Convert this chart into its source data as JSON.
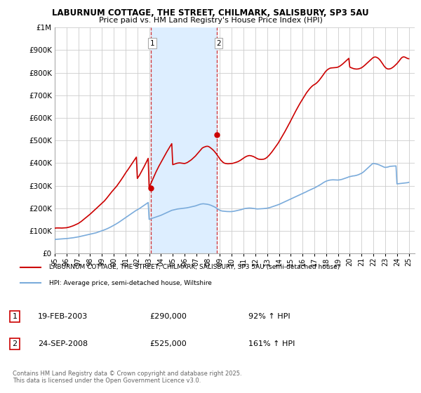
{
  "title": "LABURNUM COTTAGE, THE STREET, CHILMARK, SALISBURY, SP3 5AU",
  "subtitle": "Price paid vs. HM Land Registry's House Price Index (HPI)",
  "legend_line1": "LABURNUM COTTAGE, THE STREET, CHILMARK, SALISBURY, SP3 5AU (semi-detached house)",
  "legend_line2": "HPI: Average price, semi-detached house, Wiltshire",
  "footer": "Contains HM Land Registry data © Crown copyright and database right 2025.\nThis data is licensed under the Open Government Licence v3.0.",
  "sale1_label": "1",
  "sale1_date": "19-FEB-2003",
  "sale1_price": 290000,
  "sale1_pct": "92% ↑ HPI",
  "sale2_label": "2",
  "sale2_date": "24-SEP-2008",
  "sale2_price": 525000,
  "sale2_pct": "161% ↑ HPI",
  "sale1_x": 2003.12,
  "sale2_x": 2008.73,
  "property_color": "#cc0000",
  "hpi_color": "#7aabdb",
  "shade_color": "#ddeeff",
  "ylim": [
    0,
    1000000
  ],
  "xlim": [
    1995.0,
    2025.5
  ],
  "background_color": "#ffffff",
  "grid_color": "#cccccc",
  "hpi_years": [
    1995.0,
    1995.083,
    1995.167,
    1995.25,
    1995.333,
    1995.417,
    1995.5,
    1995.583,
    1995.667,
    1995.75,
    1995.833,
    1995.917,
    1996.0,
    1996.083,
    1996.167,
    1996.25,
    1996.333,
    1996.417,
    1996.5,
    1996.583,
    1996.667,
    1996.75,
    1996.833,
    1996.917,
    1997.0,
    1997.083,
    1997.167,
    1997.25,
    1997.333,
    1997.417,
    1997.5,
    1997.583,
    1997.667,
    1997.75,
    1997.833,
    1997.917,
    1998.0,
    1998.083,
    1998.167,
    1998.25,
    1998.333,
    1998.417,
    1998.5,
    1998.583,
    1998.667,
    1998.75,
    1998.833,
    1998.917,
    1999.0,
    1999.083,
    1999.167,
    1999.25,
    1999.333,
    1999.417,
    1999.5,
    1999.583,
    1999.667,
    1999.75,
    1999.833,
    1999.917,
    2000.0,
    2000.083,
    2000.167,
    2000.25,
    2000.333,
    2000.417,
    2000.5,
    2000.583,
    2000.667,
    2000.75,
    2000.833,
    2000.917,
    2001.0,
    2001.083,
    2001.167,
    2001.25,
    2001.333,
    2001.417,
    2001.5,
    2001.583,
    2001.667,
    2001.75,
    2001.833,
    2001.917,
    2002.0,
    2002.083,
    2002.167,
    2002.25,
    2002.333,
    2002.417,
    2002.5,
    2002.583,
    2002.667,
    2002.75,
    2002.833,
    2002.917,
    2003.0,
    2003.083,
    2003.167,
    2003.25,
    2003.333,
    2003.417,
    2003.5,
    2003.583,
    2003.667,
    2003.75,
    2003.833,
    2003.917,
    2004.0,
    2004.083,
    2004.167,
    2004.25,
    2004.333,
    2004.417,
    2004.5,
    2004.583,
    2004.667,
    2004.75,
    2004.833,
    2004.917,
    2005.0,
    2005.083,
    2005.167,
    2005.25,
    2005.333,
    2005.417,
    2005.5,
    2005.583,
    2005.667,
    2005.75,
    2005.833,
    2005.917,
    2006.0,
    2006.083,
    2006.167,
    2006.25,
    2006.333,
    2006.417,
    2006.5,
    2006.583,
    2006.667,
    2006.75,
    2006.833,
    2006.917,
    2007.0,
    2007.083,
    2007.167,
    2007.25,
    2007.333,
    2007.417,
    2007.5,
    2007.583,
    2007.667,
    2007.75,
    2007.833,
    2007.917,
    2008.0,
    2008.083,
    2008.167,
    2008.25,
    2008.333,
    2008.417,
    2008.5,
    2008.583,
    2008.667,
    2008.75,
    2008.833,
    2008.917,
    2009.0,
    2009.083,
    2009.167,
    2009.25,
    2009.333,
    2009.417,
    2009.5,
    2009.583,
    2009.667,
    2009.75,
    2009.833,
    2009.917,
    2010.0,
    2010.083,
    2010.167,
    2010.25,
    2010.333,
    2010.417,
    2010.5,
    2010.583,
    2010.667,
    2010.75,
    2010.833,
    2010.917,
    2011.0,
    2011.083,
    2011.167,
    2011.25,
    2011.333,
    2011.417,
    2011.5,
    2011.583,
    2011.667,
    2011.75,
    2011.833,
    2011.917,
    2012.0,
    2012.083,
    2012.167,
    2012.25,
    2012.333,
    2012.417,
    2012.5,
    2012.583,
    2012.667,
    2012.75,
    2012.833,
    2012.917,
    2013.0,
    2013.083,
    2013.167,
    2013.25,
    2013.333,
    2013.417,
    2013.5,
    2013.583,
    2013.667,
    2013.75,
    2013.833,
    2013.917,
    2014.0,
    2014.083,
    2014.167,
    2014.25,
    2014.333,
    2014.417,
    2014.5,
    2014.583,
    2014.667,
    2014.75,
    2014.833,
    2014.917,
    2015.0,
    2015.083,
    2015.167,
    2015.25,
    2015.333,
    2015.417,
    2015.5,
    2015.583,
    2015.667,
    2015.75,
    2015.833,
    2015.917,
    2016.0,
    2016.083,
    2016.167,
    2016.25,
    2016.333,
    2016.417,
    2016.5,
    2016.583,
    2016.667,
    2016.75,
    2016.833,
    2016.917,
    2017.0,
    2017.083,
    2017.167,
    2017.25,
    2017.333,
    2017.417,
    2017.5,
    2017.583,
    2017.667,
    2017.75,
    2017.833,
    2017.917,
    2018.0,
    2018.083,
    2018.167,
    2018.25,
    2018.333,
    2018.417,
    2018.5,
    2018.583,
    2018.667,
    2018.75,
    2018.833,
    2018.917,
    2019.0,
    2019.083,
    2019.167,
    2019.25,
    2019.333,
    2019.417,
    2019.5,
    2019.583,
    2019.667,
    2019.75,
    2019.833,
    2019.917,
    2020.0,
    2020.083,
    2020.167,
    2020.25,
    2020.333,
    2020.417,
    2020.5,
    2020.583,
    2020.667,
    2020.75,
    2020.833,
    2020.917,
    2021.0,
    2021.083,
    2021.167,
    2021.25,
    2021.333,
    2021.417,
    2021.5,
    2021.583,
    2021.667,
    2021.75,
    2021.833,
    2021.917,
    2022.0,
    2022.083,
    2022.167,
    2022.25,
    2022.333,
    2022.417,
    2022.5,
    2022.583,
    2022.667,
    2022.75,
    2022.833,
    2022.917,
    2023.0,
    2023.083,
    2023.167,
    2023.25,
    2023.333,
    2023.417,
    2023.5,
    2023.583,
    2023.667,
    2023.75,
    2023.833,
    2023.917,
    2024.0,
    2024.083,
    2024.167,
    2024.25,
    2024.333,
    2024.417,
    2024.5,
    2024.583,
    2024.667,
    2024.75,
    2024.833,
    2024.917,
    2025.0
  ],
  "hpi_values": [
    62000,
    62500,
    63000,
    63200,
    63500,
    63800,
    64000,
    64300,
    64700,
    65000,
    65300,
    65600,
    66000,
    66500,
    67000,
    67500,
    68000,
    68500,
    69000,
    69800,
    70500,
    71200,
    72000,
    72800,
    73500,
    74500,
    75500,
    76500,
    77500,
    78500,
    79500,
    80500,
    81500,
    82500,
    83500,
    84500,
    85500,
    86500,
    87500,
    88500,
    89500,
    90500,
    91500,
    93000,
    94500,
    96000,
    97500,
    99000,
    100500,
    102000,
    103800,
    105500,
    107200,
    109000,
    111000,
    113000,
    115200,
    117500,
    119800,
    122000,
    124500,
    127000,
    129500,
    132000,
    134800,
    137500,
    140500,
    143500,
    146500,
    149500,
    152500,
    155500,
    158500,
    161500,
    164500,
    167500,
    170500,
    173500,
    176500,
    179500,
    182500,
    185500,
    188500,
    191000,
    193500,
    196000,
    198500,
    201500,
    204500,
    207500,
    210500,
    213500,
    216500,
    219500,
    222500,
    225500,
    151000,
    152500,
    154000,
    155500,
    157000,
    158500,
    160000,
    161500,
    163000,
    164500,
    166000,
    167500,
    169000,
    171000,
    173000,
    175000,
    177000,
    179000,
    181000,
    183000,
    185000,
    187000,
    189000,
    191000,
    192000,
    193000,
    194000,
    195000,
    196000,
    197000,
    197500,
    198000,
    198500,
    199000,
    199500,
    200000,
    200500,
    201000,
    201800,
    202500,
    203500,
    204500,
    205500,
    206500,
    207500,
    208500,
    209500,
    210500,
    212000,
    213500,
    215000,
    216500,
    218000,
    219000,
    219500,
    220000,
    219500,
    219000,
    218500,
    218000,
    217000,
    216000,
    214500,
    213000,
    211000,
    209000,
    207000,
    205000,
    202000,
    199000,
    196000,
    193000,
    191000,
    189500,
    188000,
    187500,
    187000,
    186500,
    186000,
    185800,
    185600,
    185500,
    185400,
    185400,
    185500,
    186000,
    186800,
    187500,
    188500,
    189500,
    190500,
    191500,
    192500,
    193500,
    194500,
    196000,
    197500,
    198500,
    199500,
    200000,
    200500,
    200800,
    201000,
    200800,
    200500,
    200000,
    199500,
    198800,
    198000,
    197500,
    197000,
    197200,
    197400,
    197600,
    197800,
    198000,
    198500,
    199000,
    199500,
    200000,
    200500,
    201500,
    202500,
    203500,
    205000,
    206500,
    208000,
    209500,
    211000,
    212500,
    214000,
    215500,
    217000,
    219000,
    221000,
    223000,
    225000,
    227000,
    229000,
    231000,
    233000,
    235000,
    237000,
    239000,
    241000,
    243000,
    245000,
    247000,
    249000,
    251000,
    253000,
    255000,
    257000,
    259000,
    261000,
    263000,
    265000,
    267000,
    269000,
    271000,
    273500,
    276000,
    278000,
    280000,
    282000,
    284000,
    286000,
    288000,
    290000,
    292000,
    294500,
    297000,
    299500,
    302000,
    304500,
    307000,
    310000,
    313000,
    315500,
    318000,
    320000,
    321500,
    323000,
    324000,
    325000,
    325500,
    325800,
    326000,
    325800,
    325500,
    325200,
    325000,
    325000,
    325500,
    326000,
    327000,
    328000,
    329500,
    331000,
    332500,
    334000,
    335500,
    337000,
    339000,
    340000,
    341000,
    342000,
    343000,
    343500,
    344000,
    345000,
    346000,
    347500,
    349000,
    351000,
    353000,
    355000,
    358000,
    361000,
    365000,
    369000,
    373000,
    377000,
    381000,
    385000,
    389000,
    393000,
    397000,
    398000,
    397500,
    397000,
    396000,
    395000,
    393500,
    392000,
    390000,
    388000,
    386000,
    384000,
    382000,
    381000,
    381500,
    382000,
    383000,
    384500,
    385500,
    386000,
    386500,
    386800,
    387000,
    387200,
    387400,
    308000,
    308500,
    309000,
    309500,
    310000,
    310500,
    311000,
    311500,
    312000,
    312500,
    313000,
    313500,
    315000
  ],
  "prop_years": [
    1995.0,
    1995.083,
    1995.167,
    1995.25,
    1995.333,
    1995.417,
    1995.5,
    1995.583,
    1995.667,
    1995.75,
    1995.833,
    1995.917,
    1996.0,
    1996.083,
    1996.167,
    1996.25,
    1996.333,
    1996.417,
    1996.5,
    1996.583,
    1996.667,
    1996.75,
    1996.833,
    1996.917,
    1997.0,
    1997.083,
    1997.167,
    1997.25,
    1997.333,
    1997.417,
    1997.5,
    1997.583,
    1997.667,
    1997.75,
    1997.833,
    1997.917,
    1998.0,
    1998.083,
    1998.167,
    1998.25,
    1998.333,
    1998.417,
    1998.5,
    1998.583,
    1998.667,
    1998.75,
    1998.833,
    1998.917,
    1999.0,
    1999.083,
    1999.167,
    1999.25,
    1999.333,
    1999.417,
    1999.5,
    1999.583,
    1999.667,
    1999.75,
    1999.833,
    1999.917,
    2000.0,
    2000.083,
    2000.167,
    2000.25,
    2000.333,
    2000.417,
    2000.5,
    2000.583,
    2000.667,
    2000.75,
    2000.833,
    2000.917,
    2001.0,
    2001.083,
    2001.167,
    2001.25,
    2001.333,
    2001.417,
    2001.5,
    2001.583,
    2001.667,
    2001.75,
    2001.833,
    2001.917,
    2002.0,
    2002.083,
    2002.167,
    2002.25,
    2002.333,
    2002.417,
    2002.5,
    2002.583,
    2002.667,
    2002.75,
    2002.833,
    2002.917,
    2003.0,
    2003.083,
    2003.167,
    2003.25,
    2003.333,
    2003.417,
    2003.5,
    2003.583,
    2003.667,
    2003.75,
    2003.833,
    2003.917,
    2004.0,
    2004.083,
    2004.167,
    2004.25,
    2004.333,
    2004.417,
    2004.5,
    2004.583,
    2004.667,
    2004.75,
    2004.833,
    2004.917,
    2005.0,
    2005.083,
    2005.167,
    2005.25,
    2005.333,
    2005.417,
    2005.5,
    2005.583,
    2005.667,
    2005.75,
    2005.833,
    2005.917,
    2006.0,
    2006.083,
    2006.167,
    2006.25,
    2006.333,
    2006.417,
    2006.5,
    2006.583,
    2006.667,
    2006.75,
    2006.833,
    2006.917,
    2007.0,
    2007.083,
    2007.167,
    2007.25,
    2007.333,
    2007.417,
    2007.5,
    2007.583,
    2007.667,
    2007.75,
    2007.833,
    2007.917,
    2008.0,
    2008.083,
    2008.167,
    2008.25,
    2008.333,
    2008.417,
    2008.5,
    2008.583,
    2008.667,
    2008.75,
    2008.833,
    2008.917,
    2009.0,
    2009.083,
    2009.167,
    2009.25,
    2009.333,
    2009.417,
    2009.5,
    2009.583,
    2009.667,
    2009.75,
    2009.833,
    2009.917,
    2010.0,
    2010.083,
    2010.167,
    2010.25,
    2010.333,
    2010.417,
    2010.5,
    2010.583,
    2010.667,
    2010.75,
    2010.833,
    2010.917,
    2011.0,
    2011.083,
    2011.167,
    2011.25,
    2011.333,
    2011.417,
    2011.5,
    2011.583,
    2011.667,
    2011.75,
    2011.833,
    2011.917,
    2012.0,
    2012.083,
    2012.167,
    2012.25,
    2012.333,
    2012.417,
    2012.5,
    2012.583,
    2012.667,
    2012.75,
    2012.833,
    2012.917,
    2013.0,
    2013.083,
    2013.167,
    2013.25,
    2013.333,
    2013.417,
    2013.5,
    2013.583,
    2013.667,
    2013.75,
    2013.833,
    2013.917,
    2014.0,
    2014.083,
    2014.167,
    2014.25,
    2014.333,
    2014.417,
    2014.5,
    2014.583,
    2014.667,
    2014.75,
    2014.833,
    2014.917,
    2015.0,
    2015.083,
    2015.167,
    2015.25,
    2015.333,
    2015.417,
    2015.5,
    2015.583,
    2015.667,
    2015.75,
    2015.833,
    2015.917,
    2016.0,
    2016.083,
    2016.167,
    2016.25,
    2016.333,
    2016.417,
    2016.5,
    2016.583,
    2016.667,
    2016.75,
    2016.833,
    2016.917,
    2017.0,
    2017.083,
    2017.167,
    2017.25,
    2017.333,
    2017.417,
    2017.5,
    2017.583,
    2017.667,
    2017.75,
    2017.833,
    2017.917,
    2018.0,
    2018.083,
    2018.167,
    2018.25,
    2018.333,
    2018.417,
    2018.5,
    2018.583,
    2018.667,
    2018.75,
    2018.833,
    2018.917,
    2019.0,
    2019.083,
    2019.167,
    2019.25,
    2019.333,
    2019.417,
    2019.5,
    2019.583,
    2019.667,
    2019.75,
    2019.833,
    2019.917,
    2020.0,
    2020.083,
    2020.167,
    2020.25,
    2020.333,
    2020.417,
    2020.5,
    2020.583,
    2020.667,
    2020.75,
    2020.833,
    2020.917,
    2021.0,
    2021.083,
    2021.167,
    2021.25,
    2021.333,
    2021.417,
    2021.5,
    2021.583,
    2021.667,
    2021.75,
    2021.833,
    2021.917,
    2022.0,
    2022.083,
    2022.167,
    2022.25,
    2022.333,
    2022.417,
    2022.5,
    2022.583,
    2022.667,
    2022.75,
    2022.833,
    2022.917,
    2023.0,
    2023.083,
    2023.167,
    2023.25,
    2023.333,
    2023.417,
    2023.5,
    2023.583,
    2023.667,
    2023.75,
    2023.833,
    2023.917,
    2024.0,
    2024.083,
    2024.167,
    2024.25,
    2024.333,
    2024.417,
    2024.5,
    2024.583,
    2024.667,
    2024.75,
    2024.833,
    2024.917,
    2025.0
  ],
  "prop_values": [
    112000,
    112500,
    113000,
    113000,
    113200,
    113000,
    112800,
    112500,
    112800,
    113000,
    113200,
    113500,
    114000,
    115000,
    116000,
    117000,
    118500,
    120000,
    121500,
    123000,
    125000,
    127000,
    129000,
    131000,
    133000,
    136000,
    139000,
    142000,
    145500,
    149000,
    152500,
    156000,
    159500,
    163000,
    166500,
    170000,
    174000,
    178000,
    182000,
    186000,
    190000,
    194000,
    198000,
    202000,
    206000,
    210000,
    214000,
    218000,
    222000,
    226000,
    230500,
    235000,
    240000,
    245500,
    251000,
    256500,
    262000,
    267500,
    273000,
    278000,
    283000,
    288000,
    293000,
    298000,
    304000,
    310000,
    316000,
    322500,
    329000,
    335500,
    342000,
    349000,
    356000,
    362000,
    368000,
    374500,
    381000,
    388000,
    394500,
    401000,
    407500,
    414000,
    420000,
    426500,
    332000,
    338500,
    345000,
    353000,
    361000,
    369000,
    377000,
    385500,
    394000,
    403000,
    412000,
    421000,
    290000,
    302000,
    312000,
    322000,
    332000,
    342000,
    352000,
    361000,
    370000,
    379000,
    387000,
    395000,
    403000,
    411000,
    418500,
    426000,
    434000,
    442000,
    450000,
    457500,
    465000,
    472000,
    479000,
    486000,
    393000,
    394500,
    396000,
    397500,
    399000,
    400000,
    400500,
    401000,
    400500,
    400000,
    399200,
    398500,
    398000,
    399500,
    401000,
    403000,
    406000,
    409000,
    412000,
    415000,
    419000,
    423000,
    427000,
    431000,
    436000,
    441000,
    446000,
    451000,
    456500,
    461500,
    466500,
    469000,
    471000,
    472500,
    474000,
    474500,
    474000,
    472000,
    469000,
    465500,
    462000,
    458000,
    453500,
    448500,
    443000,
    437000,
    430500,
    424000,
    418000,
    412500,
    408000,
    404000,
    401000,
    399000,
    398000,
    397500,
    397000,
    397200,
    397500,
    397800,
    398200,
    399000,
    400200,
    401500,
    403000,
    404500,
    406000,
    408000,
    410500,
    413000,
    416000,
    419000,
    422000,
    425000,
    427500,
    430000,
    431500,
    432800,
    433500,
    432800,
    432000,
    430500,
    429000,
    427000,
    424500,
    422000,
    419500,
    418000,
    417000,
    416500,
    416200,
    416500,
    417000,
    418000,
    420000,
    422500,
    426000,
    430000,
    434500,
    439500,
    445000,
    450500,
    456500,
    462500,
    468500,
    474500,
    480500,
    487000,
    494000,
    501500,
    509000,
    516500,
    524000,
    531500,
    539000,
    547000,
    555000,
    563000,
    571000,
    579500,
    588000,
    596500,
    605000,
    613500,
    622000,
    630000,
    638000,
    646000,
    654000,
    661500,
    669000,
    676000,
    683000,
    690000,
    697000,
    704000,
    711000,
    717000,
    722500,
    728000,
    733000,
    737500,
    741500,
    745000,
    747500,
    750000,
    753500,
    757500,
    762000,
    767000,
    772500,
    778500,
    784500,
    790500,
    797000,
    803000,
    808000,
    812000,
    815500,
    818000,
    820000,
    821000,
    821500,
    821800,
    822000,
    822500,
    823000,
    823500,
    825000,
    827000,
    829500,
    832500,
    836000,
    839500,
    843500,
    847500,
    851500,
    855500,
    859500,
    863500,
    825000,
    823000,
    821000,
    819500,
    818000,
    817000,
    816500,
    816000,
    816500,
    817000,
    818500,
    820000,
    822000,
    825000,
    828500,
    832000,
    836000,
    840000,
    844000,
    848000,
    852000,
    856000,
    860000,
    864000,
    867500,
    869000,
    869500,
    868500,
    866500,
    863500,
    859500,
    854500,
    848500,
    842000,
    835500,
    829000,
    824000,
    820000,
    817500,
    816500,
    816500,
    817500,
    819000,
    821500,
    824500,
    828000,
    832000,
    836000,
    840500,
    845500,
    851000,
    856500,
    862500,
    867000,
    869500,
    870000,
    869000,
    867000,
    864500,
    862500,
    862000
  ]
}
